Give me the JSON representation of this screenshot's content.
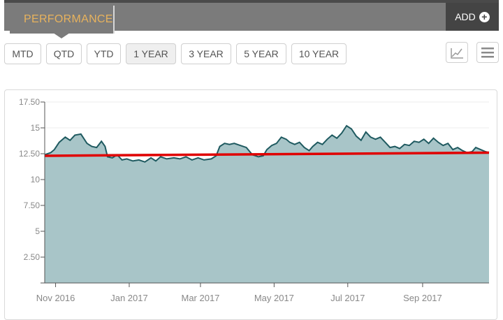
{
  "header": {
    "tab_label": "PERFORMANCE",
    "add_label": "ADD"
  },
  "range_buttons": [
    {
      "label": "MTD",
      "active": false
    },
    {
      "label": "QTD",
      "active": false
    },
    {
      "label": "YTD",
      "active": false
    },
    {
      "label": "1 YEAR",
      "active": true
    },
    {
      "label": "3 YEAR",
      "active": false
    },
    {
      "label": "5 YEAR",
      "active": false
    },
    {
      "label": "10 YEAR",
      "active": false
    }
  ],
  "view_icons": [
    "line-chart-icon",
    "menu-icon"
  ],
  "colors": {
    "area_fill": "#a8c5c8",
    "price_line": "#1f5a60",
    "reference_line": "#e00000",
    "accent": "#e7b25d"
  },
  "chart_data": {
    "type": "area",
    "ylim": [
      0,
      17.5
    ],
    "yticks": [
      {
        "value": 17.5,
        "label": "17.50"
      },
      {
        "value": 15,
        "label": "15"
      },
      {
        "value": 12.5,
        "label": "12.50"
      },
      {
        "value": 10,
        "label": "10"
      },
      {
        "value": 7.5,
        "label": "7.50"
      },
      {
        "value": 5,
        "label": "5"
      },
      {
        "value": 2.5,
        "label": "2.50"
      }
    ],
    "xlim": [
      "2016-10-23",
      "2017-10-26"
    ],
    "xticks": [
      {
        "date": "2016-11-01",
        "label": "Nov 2016"
      },
      {
        "date": "2017-01-01",
        "label": "Jan 2017"
      },
      {
        "date": "2017-03-01",
        "label": "Mar 2017"
      },
      {
        "date": "2017-05-01",
        "label": "May 2017"
      },
      {
        "date": "2017-07-01",
        "label": "Jul 2017"
      },
      {
        "date": "2017-09-01",
        "label": "Sep 2017"
      }
    ],
    "series": [
      {
        "points": [
          [
            "2016-10-23",
            12.4
          ],
          [
            "2016-10-28",
            12.6
          ],
          [
            "2016-10-31",
            12.9
          ],
          [
            "2016-11-04",
            13.6
          ],
          [
            "2016-11-09",
            14.1
          ],
          [
            "2016-11-13",
            13.8
          ],
          [
            "2016-11-17",
            14.3
          ],
          [
            "2016-11-22",
            14.4
          ],
          [
            "2016-11-27",
            13.5
          ],
          [
            "2016-12-01",
            13.2
          ],
          [
            "2016-12-05",
            13.1
          ],
          [
            "2016-12-09",
            13.7
          ],
          [
            "2016-12-12",
            13.2
          ],
          [
            "2016-12-14",
            12.2
          ],
          [
            "2016-12-18",
            12.1
          ],
          [
            "2016-12-22",
            12.4
          ],
          [
            "2016-12-26",
            11.9
          ],
          [
            "2016-12-30",
            12.0
          ],
          [
            "2017-01-04",
            11.8
          ],
          [
            "2017-01-09",
            11.9
          ],
          [
            "2017-01-14",
            11.7
          ],
          [
            "2017-01-19",
            12.1
          ],
          [
            "2017-01-23",
            11.8
          ],
          [
            "2017-01-27",
            12.2
          ],
          [
            "2017-02-01",
            12.0
          ],
          [
            "2017-02-07",
            12.1
          ],
          [
            "2017-02-12",
            12.0
          ],
          [
            "2017-02-17",
            12.2
          ],
          [
            "2017-02-22",
            11.9
          ],
          [
            "2017-02-27",
            12.1
          ],
          [
            "2017-03-04",
            11.9
          ],
          [
            "2017-03-10",
            12.0
          ],
          [
            "2017-03-14",
            12.3
          ],
          [
            "2017-03-17",
            13.2
          ],
          [
            "2017-03-21",
            13.5
          ],
          [
            "2017-03-25",
            13.4
          ],
          [
            "2017-03-29",
            13.5
          ],
          [
            "2017-04-03",
            13.3
          ],
          [
            "2017-04-08",
            13.1
          ],
          [
            "2017-04-13",
            12.4
          ],
          [
            "2017-04-18",
            12.2
          ],
          [
            "2017-04-22",
            12.3
          ],
          [
            "2017-04-25",
            12.9
          ],
          [
            "2017-04-29",
            13.3
          ],
          [
            "2017-05-03",
            13.5
          ],
          [
            "2017-05-07",
            14.1
          ],
          [
            "2017-05-11",
            13.9
          ],
          [
            "2017-05-14",
            13.6
          ],
          [
            "2017-05-18",
            13.4
          ],
          [
            "2017-05-22",
            13.6
          ],
          [
            "2017-05-26",
            13.1
          ],
          [
            "2017-05-30",
            12.8
          ],
          [
            "2017-06-02",
            13.2
          ],
          [
            "2017-06-06",
            13.6
          ],
          [
            "2017-06-10",
            13.4
          ],
          [
            "2017-06-14",
            13.9
          ],
          [
            "2017-06-18",
            14.3
          ],
          [
            "2017-06-22",
            14.0
          ],
          [
            "2017-06-26",
            14.5
          ],
          [
            "2017-06-30",
            15.2
          ],
          [
            "2017-07-04",
            14.9
          ],
          [
            "2017-07-08",
            14.2
          ],
          [
            "2017-07-12",
            13.8
          ],
          [
            "2017-07-16",
            14.6
          ],
          [
            "2017-07-20",
            14.1
          ],
          [
            "2017-07-24",
            13.9
          ],
          [
            "2017-07-28",
            14.1
          ],
          [
            "2017-08-01",
            13.6
          ],
          [
            "2017-08-05",
            13.1
          ],
          [
            "2017-08-09",
            13.2
          ],
          [
            "2017-08-13",
            13.0
          ],
          [
            "2017-08-17",
            13.4
          ],
          [
            "2017-08-21",
            13.3
          ],
          [
            "2017-08-25",
            13.7
          ],
          [
            "2017-08-29",
            13.6
          ],
          [
            "2017-09-02",
            13.9
          ],
          [
            "2017-09-06",
            13.5
          ],
          [
            "2017-09-10",
            14.0
          ],
          [
            "2017-09-14",
            13.6
          ],
          [
            "2017-09-18",
            13.3
          ],
          [
            "2017-09-22",
            13.5
          ],
          [
            "2017-09-26",
            12.9
          ],
          [
            "2017-09-30",
            13.1
          ],
          [
            "2017-10-04",
            12.8
          ],
          [
            "2017-10-08",
            12.6
          ],
          [
            "2017-10-12",
            12.7
          ],
          [
            "2017-10-15",
            13.1
          ],
          [
            "2017-10-19",
            12.9
          ],
          [
            "2017-10-23",
            12.7
          ],
          [
            "2017-10-26",
            12.6
          ]
        ]
      },
      {
        "points": [
          [
            "2016-10-23",
            12.3
          ],
          [
            "2017-10-26",
            12.6
          ]
        ]
      }
    ],
    "grid": true
  }
}
